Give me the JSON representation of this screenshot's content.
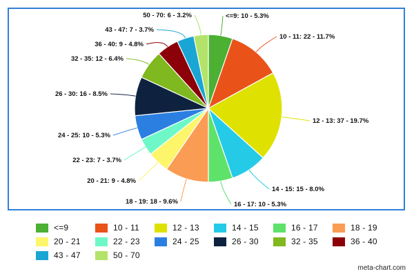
{
  "chart_data": {
    "type": "pie",
    "title": "",
    "categories": [
      "<=9",
      "10 - 11",
      "12 - 13",
      "14 - 15",
      "16 - 17",
      "18 - 19",
      "20 - 21",
      "22 - 23",
      "24 - 25",
      "26 - 30",
      "32 - 35",
      "36 - 40",
      "43 - 47",
      "50 - 70"
    ],
    "values": [
      10,
      22,
      37,
      15,
      10,
      18,
      9,
      7,
      10,
      16,
      12,
      9,
      7,
      6
    ],
    "labels": [
      "<=9: 10 - 5.3%",
      "10 - 11: 22 - 11.7%",
      "12 - 13: 37 - 19.7%",
      "14 - 15: 15 - 8.0%",
      "16 - 17: 10 - 5.3%",
      "18 - 19: 18 - 9.6%",
      "20 - 21: 9 - 4.8%",
      "22 - 23: 7 - 3.7%",
      "24 - 25: 10 - 5.3%",
      "26 - 30: 16 - 8.5%",
      "32 - 35: 12 - 6.4%",
      "36 - 40: 9 - 4.8%",
      "43 - 47: 7 - 3.7%",
      "50 - 70: 6 - 3.2%"
    ],
    "colors": [
      "#4cb033",
      "#e9531a",
      "#dfe200",
      "#25cbe6",
      "#5ee26a",
      "#fb9c54",
      "#fdf56a",
      "#6ef8c8",
      "#2b7fe0",
      "#0e2240",
      "#7fb81f",
      "#8b0009",
      "#1aa6d4",
      "#b3e36a"
    ],
    "legend_position": "bottom"
  },
  "credit": "meta-chart.com"
}
